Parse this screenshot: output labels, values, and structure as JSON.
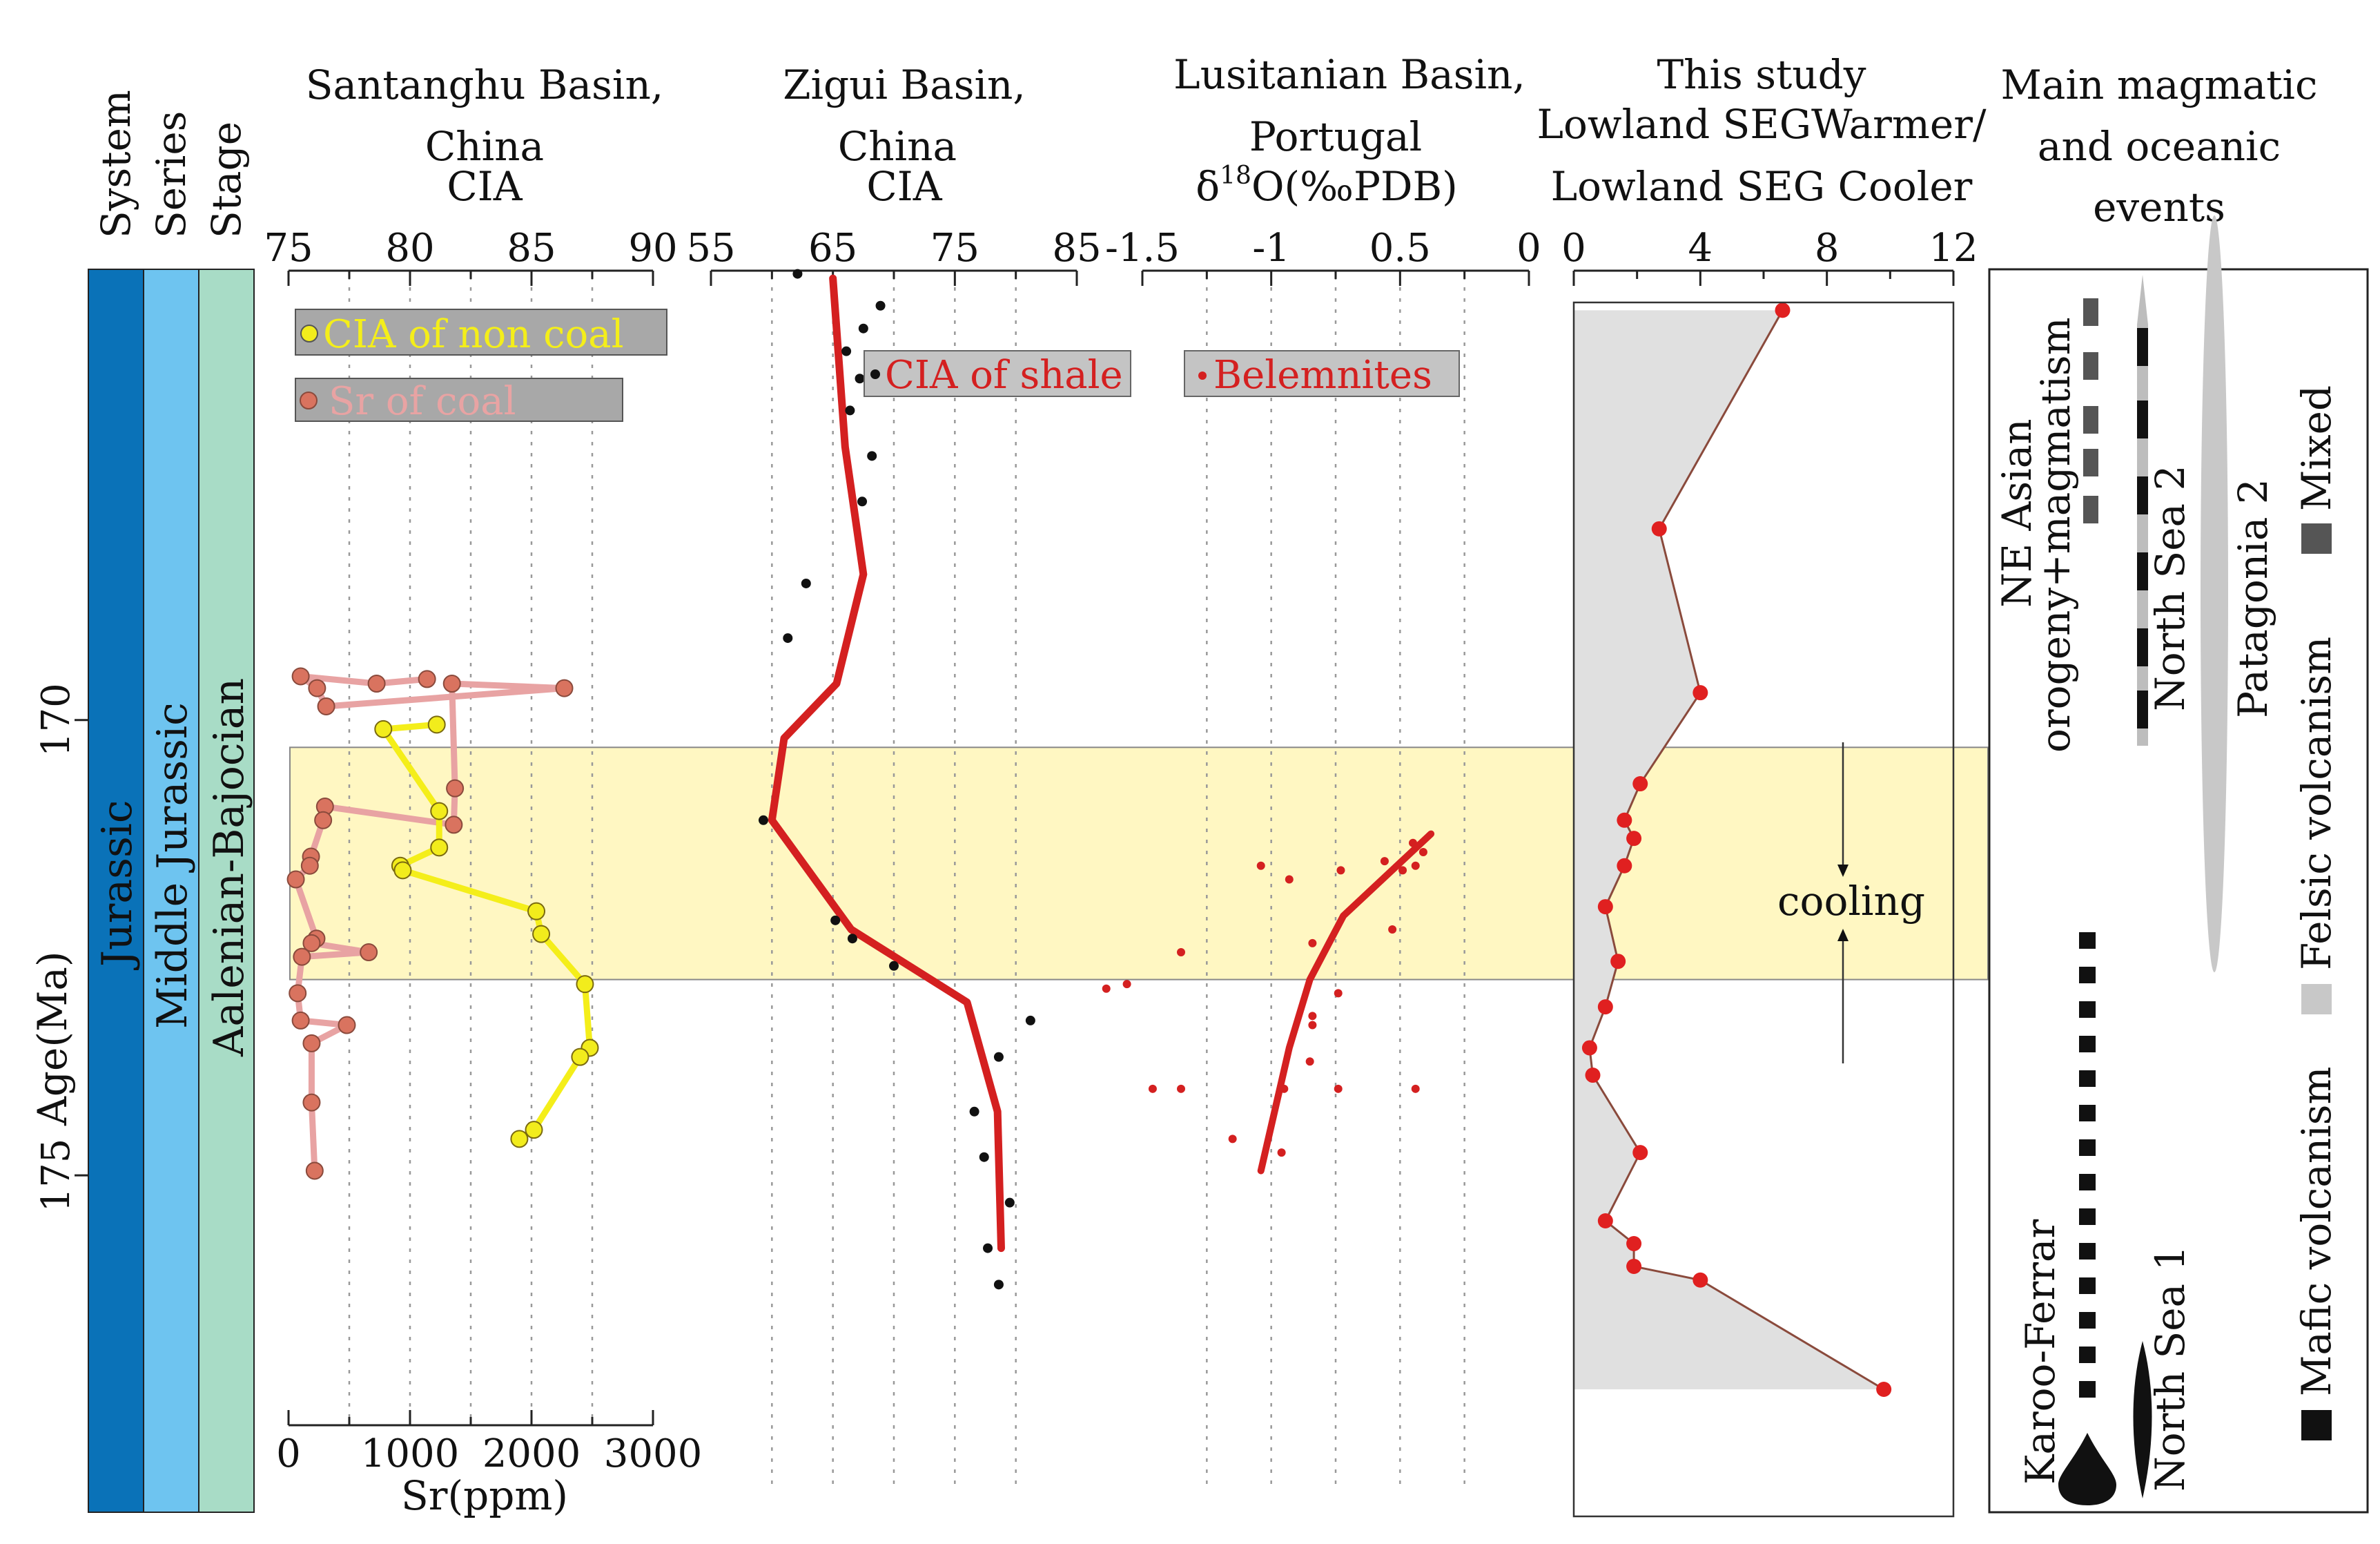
{
  "age_axis": {
    "label": "Age(Ma)",
    "range": [
      165.05,
      178.7
    ],
    "ticks": [
      {
        "value": 170,
        "label": "170"
      },
      {
        "value": 175,
        "label": "175"
      }
    ]
  },
  "strat_columns": {
    "system": {
      "header": "System",
      "text": "Jurassic",
      "color": "#0a72b8"
    },
    "series": {
      "header": "Series",
      "text": "Middle Jurassic",
      "color": "#6ec4f0"
    },
    "stage": {
      "header": "Stage",
      "text": "Aalenian-Bajocian",
      "color": "#a8dcc6"
    }
  },
  "cooling_band": {
    "from_age": 170.3,
    "to_age": 172.85,
    "color": "#fff7c2",
    "label": "cooling"
  },
  "panels": {
    "santanghu": {
      "title_lines": [
        "Santanghu Basin,",
        "China",
        "CIA"
      ],
      "top_ticks": [
        "75",
        "80",
        "85",
        "90"
      ],
      "bottom_ticks": [
        "0",
        "1000",
        "2000",
        "3000"
      ],
      "bottom_label": "Sr(ppm)",
      "legend_cia": "CIA of non coal",
      "legend_sr": "Sr of coal"
    },
    "zigui": {
      "title_lines": [
        "Zigui Basin,",
        "China",
        "CIA"
      ],
      "top_ticks": [
        "55",
        "65",
        "75",
        "85"
      ],
      "legend": "CIA of shale"
    },
    "lusitanian": {
      "title_lines": [
        "Lusitanian Basin,",
        "Portugal"
      ],
      "axis_label": "δ18O(‰PDB)",
      "top_ticks": [
        "-1.5",
        "-1",
        "0.5",
        "0"
      ],
      "legend": "Belemnites"
    },
    "this_study": {
      "title_lines": [
        "This study",
        "Lowland SEGWarmer/",
        "Lowland SEG Cooler"
      ],
      "top_ticks": [
        "0",
        "4",
        "8",
        "12"
      ]
    },
    "events": {
      "title_lines": [
        "Main magmatic",
        "and oceanic",
        "events"
      ],
      "labels": {
        "ne_asian_1": "NE Asian",
        "ne_asian_2": "orogeny+magmatism",
        "north_sea_2": "North Sea 2",
        "patagonia_2": "Patagonia 2",
        "karoo": "Karoo-Ferrar",
        "north_sea_1": "North Sea 1"
      },
      "legend": {
        "mixed": "Mixed",
        "felsic": "Felsic volcanism",
        "mafic": "Mafic volcanism"
      },
      "colors": {
        "mafic": "#111111",
        "felsic": "#c8c8c8",
        "mixed": "#555555"
      }
    }
  },
  "chart_data": [
    {
      "type": "line",
      "name": "santanghu_sr",
      "xlabel": "Sr(ppm)",
      "xlim": [
        0,
        3000
      ],
      "legend": "Sr of coal",
      "color": "#e8a3a3",
      "marker_color": "#d9735f",
      "points": [
        {
          "x": 1140,
          "age": 169.55
        },
        {
          "x": 725,
          "age": 169.6
        },
        {
          "x": 100,
          "age": 169.52
        },
        {
          "x": 235,
          "age": 169.65
        },
        {
          "x": 310,
          "age": 169.85
        },
        {
          "x": 2270,
          "age": 169.65
        },
        {
          "x": 1345,
          "age": 169.6
        },
        {
          "x": 1370,
          "age": 170.75
        },
        {
          "x": 1360,
          "age": 171.15
        },
        {
          "x": 300,
          "age": 170.95
        },
        {
          "x": 285,
          "age": 171.1
        },
        {
          "x": 185,
          "age": 171.5
        },
        {
          "x": 175,
          "age": 171.6
        },
        {
          "x": 60,
          "age": 171.75
        },
        {
          "x": 230,
          "age": 172.4
        },
        {
          "x": 190,
          "age": 172.45
        },
        {
          "x": 660,
          "age": 172.55
        },
        {
          "x": 110,
          "age": 172.6
        },
        {
          "x": 75,
          "age": 173.0
        },
        {
          "x": 100,
          "age": 173.3
        },
        {
          "x": 480,
          "age": 173.35
        },
        {
          "x": 190,
          "age": 173.55
        },
        {
          "x": 190,
          "age": 174.2
        },
        {
          "x": 215,
          "age": 174.95
        }
      ]
    },
    {
      "type": "line",
      "name": "santanghu_cia",
      "xlabel": "CIA",
      "xlim": [
        75,
        90
      ],
      "legend": "CIA of non coal",
      "color": "#f4ee1a",
      "marker_color": "#f2ec1c",
      "points": [
        {
          "x": 78.9,
          "age": 170.1
        },
        {
          "x": 81.1,
          "age": 170.05
        },
        {
          "x": 81.2,
          "age": 171.0
        },
        {
          "x": 81.2,
          "age": 171.4
        },
        {
          "x": 79.6,
          "age": 171.6
        },
        {
          "x": 79.7,
          "age": 171.65
        },
        {
          "x": 85.2,
          "age": 172.1
        },
        {
          "x": 85.4,
          "age": 172.35
        },
        {
          "x": 87.2,
          "age": 172.9
        },
        {
          "x": 87.4,
          "age": 173.6
        },
        {
          "x": 87.0,
          "age": 173.7
        },
        {
          "x": 84.5,
          "age": 174.6
        },
        {
          "x": 85.1,
          "age": 174.5
        }
      ]
    },
    {
      "type": "line",
      "name": "zigui_cia",
      "xlabel": "CIA",
      "xlim": [
        55,
        85
      ],
      "legend": "CIA of shale",
      "color": "#d42020",
      "marker_color": "#111111",
      "trend": [
        {
          "x": 65.0,
          "age": 165.15
        },
        {
          "x": 66.0,
          "age": 167.0
        },
        {
          "x": 67.5,
          "age": 168.4
        },
        {
          "x": 65.3,
          "age": 169.6
        },
        {
          "x": 61.0,
          "age": 170.2
        },
        {
          "x": 60.0,
          "age": 171.1
        },
        {
          "x": 66.5,
          "age": 172.3
        },
        {
          "x": 76.0,
          "age": 173.1
        },
        {
          "x": 78.5,
          "age": 174.3
        },
        {
          "x": 78.7,
          "age": 175.3
        },
        {
          "x": 78.8,
          "age": 175.8
        }
      ],
      "samples": [
        {
          "x": 62.1,
          "age": 165.1
        },
        {
          "x": 68.9,
          "age": 165.45
        },
        {
          "x": 67.5,
          "age": 165.7
        },
        {
          "x": 66.1,
          "age": 165.95
        },
        {
          "x": 67.2,
          "age": 166.25
        },
        {
          "x": 66.4,
          "age": 166.6
        },
        {
          "x": 68.2,
          "age": 167.1
        },
        {
          "x": 67.4,
          "age": 167.6
        },
        {
          "x": 62.8,
          "age": 168.5
        },
        {
          "x": 61.3,
          "age": 169.1
        },
        {
          "x": 59.3,
          "age": 171.1
        },
        {
          "x": 65.2,
          "age": 172.2
        },
        {
          "x": 66.6,
          "age": 172.4
        },
        {
          "x": 70.0,
          "age": 172.7
        },
        {
          "x": 81.2,
          "age": 173.3
        },
        {
          "x": 78.6,
          "age": 173.7
        },
        {
          "x": 76.6,
          "age": 174.3
        },
        {
          "x": 77.4,
          "age": 174.8
        },
        {
          "x": 79.5,
          "age": 175.3
        },
        {
          "x": 77.7,
          "age": 175.8
        },
        {
          "x": 78.6,
          "age": 176.2
        }
      ]
    },
    {
      "type": "scatter",
      "name": "lusitanian_d18o",
      "xlabel": "δ18O(‰PDB)",
      "xlim": [
        -1.5,
        0
      ],
      "legend": "Belemnites",
      "color": "#d42020",
      "trend": [
        {
          "x": -0.38,
          "age": 171.25
        },
        {
          "x": -0.72,
          "age": 172.15
        },
        {
          "x": -0.85,
          "age": 172.85
        },
        {
          "x": -0.93,
          "age": 173.6
        },
        {
          "x": -1.04,
          "age": 174.95
        }
      ],
      "samples": [
        {
          "x": -0.45,
          "age": 171.35
        },
        {
          "x": -0.41,
          "age": 171.45
        },
        {
          "x": -0.56,
          "age": 171.55
        },
        {
          "x": -1.04,
          "age": 171.6
        },
        {
          "x": -0.44,
          "age": 171.6
        },
        {
          "x": -0.49,
          "age": 171.65
        },
        {
          "x": -0.73,
          "age": 171.65
        },
        {
          "x": -0.93,
          "age": 171.75
        },
        {
          "x": -0.53,
          "age": 172.3
        },
        {
          "x": -0.84,
          "age": 172.45
        },
        {
          "x": -1.35,
          "age": 172.55
        },
        {
          "x": -1.56,
          "age": 172.9
        },
        {
          "x": -1.64,
          "age": 172.95
        },
        {
          "x": -0.74,
          "age": 173.0
        },
        {
          "x": -0.84,
          "age": 173.25
        },
        {
          "x": -0.84,
          "age": 173.35
        },
        {
          "x": -0.85,
          "age": 173.75
        },
        {
          "x": -1.46,
          "age": 174.05
        },
        {
          "x": -1.35,
          "age": 174.05
        },
        {
          "x": -0.95,
          "age": 174.05
        },
        {
          "x": -0.74,
          "age": 174.05
        },
        {
          "x": -0.44,
          "age": 174.05
        },
        {
          "x": -1.15,
          "age": 174.6
        },
        {
          "x": -0.96,
          "age": 174.75
        }
      ]
    },
    {
      "type": "area",
      "name": "this_study_ratio",
      "xlabel": "Lowland SEGWarmer/Lowland SEG Cooler",
      "xlim": [
        0,
        12
      ],
      "fill_color": "#e0e0e0",
      "line_color": "#8a4a3c",
      "marker_color": "#e02020",
      "points": [
        {
          "x": 6.6,
          "age": 165.5
        },
        {
          "x": 2.7,
          "age": 167.9
        },
        {
          "x": 4.0,
          "age": 169.7
        },
        {
          "x": 2.1,
          "age": 170.7
        },
        {
          "x": 1.6,
          "age": 171.1
        },
        {
          "x": 1.9,
          "age": 171.3
        },
        {
          "x": 1.6,
          "age": 171.6
        },
        {
          "x": 1.0,
          "age": 172.05
        },
        {
          "x": 1.4,
          "age": 172.65
        },
        {
          "x": 1.0,
          "age": 173.15
        },
        {
          "x": 0.5,
          "age": 173.6
        },
        {
          "x": 0.6,
          "age": 173.9
        },
        {
          "x": 2.1,
          "age": 174.75
        },
        {
          "x": 1.0,
          "age": 175.5
        },
        {
          "x": 1.9,
          "age": 175.75
        },
        {
          "x": 1.9,
          "age": 176.0
        },
        {
          "x": 4.0,
          "age": 176.15
        },
        {
          "x": 9.8,
          "age": 177.35
        }
      ]
    }
  ]
}
